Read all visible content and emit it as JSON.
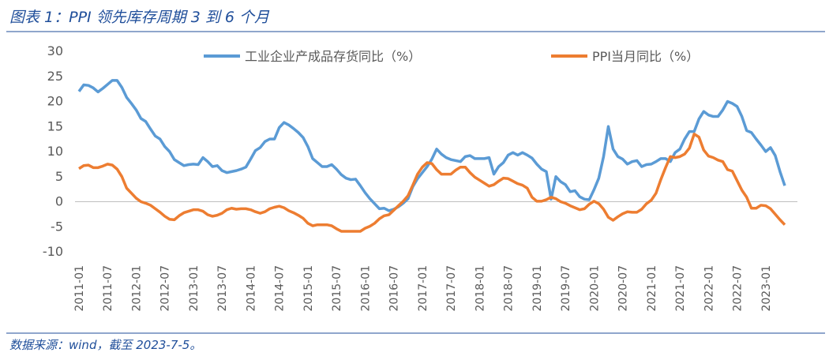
{
  "chart_data": {
    "type": "line",
    "title": "图表 1：PPI 领先库存周期 3 到 6 个月",
    "source": "数据来源：wind，截至 2023-7-5。",
    "categories": [
      "2011-01",
      null,
      null,
      null,
      null,
      null,
      "2011-07",
      null,
      null,
      null,
      null,
      null,
      "2012-01",
      null,
      null,
      null,
      null,
      null,
      "2012-07",
      null,
      null,
      null,
      null,
      null,
      "2013-01",
      null,
      null,
      null,
      null,
      null,
      "2013-07",
      null,
      null,
      null,
      null,
      null,
      "2014-01",
      null,
      null,
      null,
      null,
      null,
      "2014-07",
      null,
      null,
      null,
      null,
      null,
      "2015-01",
      null,
      null,
      null,
      null,
      null,
      "2015-07",
      null,
      null,
      null,
      null,
      null,
      "2016-01",
      null,
      null,
      null,
      null,
      null,
      "2016-07",
      null,
      null,
      null,
      null,
      null,
      "2017-01",
      null,
      null,
      null,
      null,
      null,
      "2017-07",
      null,
      null,
      null,
      null,
      null,
      "2018-01",
      null,
      null,
      null,
      null,
      null,
      "2018-07",
      null,
      null,
      null,
      null,
      null,
      "2019-01",
      null,
      null,
      null,
      null,
      null,
      "2019-07",
      null,
      null,
      null,
      null,
      null,
      "2020-01",
      null,
      null,
      null,
      null,
      null,
      "2020-07",
      null,
      null,
      null,
      null,
      null,
      "2021-01",
      null,
      null,
      null,
      null,
      null,
      "2021-07",
      null,
      null,
      null,
      null,
      null,
      "2022-01",
      null,
      null,
      null,
      null,
      null,
      "2022-07",
      null,
      null,
      null,
      null,
      null,
      "2023-01",
      null,
      null,
      null,
      null
    ],
    "series": [
      {
        "name": "工业企业产成品存货同比（%）",
        "color": "#5b9bd5",
        "values": [
          22,
          23.3,
          23.2,
          22.7,
          21.9,
          22.6,
          23.4,
          24.2,
          24.2,
          22.8,
          20.8,
          19.6,
          18.3,
          16.6,
          16,
          14.5,
          13.1,
          12.5,
          11,
          10,
          8.4,
          7.8,
          7.2,
          7.4,
          7.5,
          7.4,
          8.8,
          8,
          7,
          7.2,
          6.2,
          5.8,
          6,
          6.2,
          6.5,
          6.9,
          8.5,
          10.2,
          10.8,
          12,
          12.5,
          12.5,
          14.8,
          15.8,
          15.3,
          14.6,
          13.8,
          12.8,
          11,
          8.6,
          7.8,
          7,
          7,
          7.4,
          6.5,
          5.4,
          4.7,
          4.4,
          4.5,
          3.2,
          1.8,
          0.6,
          -0.4,
          -1.4,
          -1.3,
          -1.8,
          -1.5,
          -1,
          -0.3,
          0.6,
          3,
          4.6,
          5.8,
          7,
          8.5,
          10.5,
          9.5,
          8.8,
          8.4,
          8.2,
          8,
          9,
          9.2,
          8.6,
          8.6,
          8.6,
          8.8,
          5.5,
          7,
          7.8,
          9.3,
          9.8,
          9.3,
          9.8,
          9.3,
          8.7,
          7.5,
          6.5,
          6,
          0.5,
          5,
          4,
          3.4,
          2,
          2.2,
          1,
          0.5,
          0.4,
          2.4,
          4.7,
          9,
          15,
          10.5,
          9,
          8.5,
          7.5,
          8,
          8.2,
          7,
          7.4,
          7.5,
          8,
          8.6,
          8.6,
          8,
          9.8,
          10.5,
          12.5,
          14,
          14,
          16.5,
          18,
          17.3,
          17,
          17,
          18.3,
          20,
          19.6,
          19,
          17,
          14.2,
          13.8,
          12.5,
          11.3,
          10,
          10.8,
          9.2,
          6,
          3.2
        ]
      },
      {
        "name": "PPI当月同比（%）",
        "color": "#ed7d31",
        "values": [
          6.6,
          7.2,
          7.3,
          6.8,
          6.8,
          7.1,
          7.5,
          7.3,
          6.5,
          5,
          2.7,
          1.7,
          0.7,
          0,
          -0.3,
          -0.7,
          -1.4,
          -2.1,
          -2.9,
          -3.5,
          -3.6,
          -2.8,
          -2.2,
          -1.9,
          -1.6,
          -1.6,
          -1.9,
          -2.6,
          -2.9,
          -2.7,
          -2.3,
          -1.6,
          -1.3,
          -1.5,
          -1.4,
          -1.4,
          -1.6,
          -2,
          -2.3,
          -2,
          -1.4,
          -1.1,
          -0.9,
          -1.2,
          -1.8,
          -2.2,
          -2.7,
          -3.3,
          -4.3,
          -4.8,
          -4.6,
          -4.6,
          -4.6,
          -4.8,
          -5.4,
          -5.9,
          -5.9,
          -5.9,
          -5.9,
          -5.9,
          -5.3,
          -4.9,
          -4.3,
          -3.4,
          -2.8,
          -2.6,
          -1.7,
          -0.8,
          0.1,
          1.2,
          3.3,
          5.5,
          6.9,
          7.8,
          7.6,
          6.4,
          5.5,
          5.5,
          5.5,
          6.3,
          6.9,
          6.9,
          5.8,
          4.9,
          4.3,
          3.7,
          3.1,
          3.4,
          4.1,
          4.7,
          4.6,
          4.1,
          3.6,
          3.3,
          2.7,
          0.9,
          0.1,
          0.1,
          0.4,
          0.9,
          0.6,
          0,
          -0.3,
          -0.8,
          -1.2,
          -1.6,
          -1.4,
          -0.5,
          0.1,
          -0.4,
          -1.5,
          -3.1,
          -3.7,
          -3,
          -2.4,
          -2,
          -2.1,
          -2.1,
          -1.5,
          -0.4,
          0.3,
          1.7,
          4.4,
          6.8,
          9,
          8.8,
          9,
          9.5,
          10.7,
          13.5,
          12.9,
          10.3,
          9.1,
          8.8,
          8.3,
          8,
          6.4,
          6.1,
          4.2,
          2.3,
          0.9,
          -1.3,
          -1.3,
          -0.7,
          -0.8,
          -1.4,
          -2.5,
          -3.6,
          -4.6
        ]
      }
    ],
    "ylim": [
      -10,
      30
    ],
    "yticks": [
      -10,
      -5,
      0,
      5,
      10,
      15,
      20,
      25,
      30
    ],
    "legend": "top",
    "grid": false
  }
}
